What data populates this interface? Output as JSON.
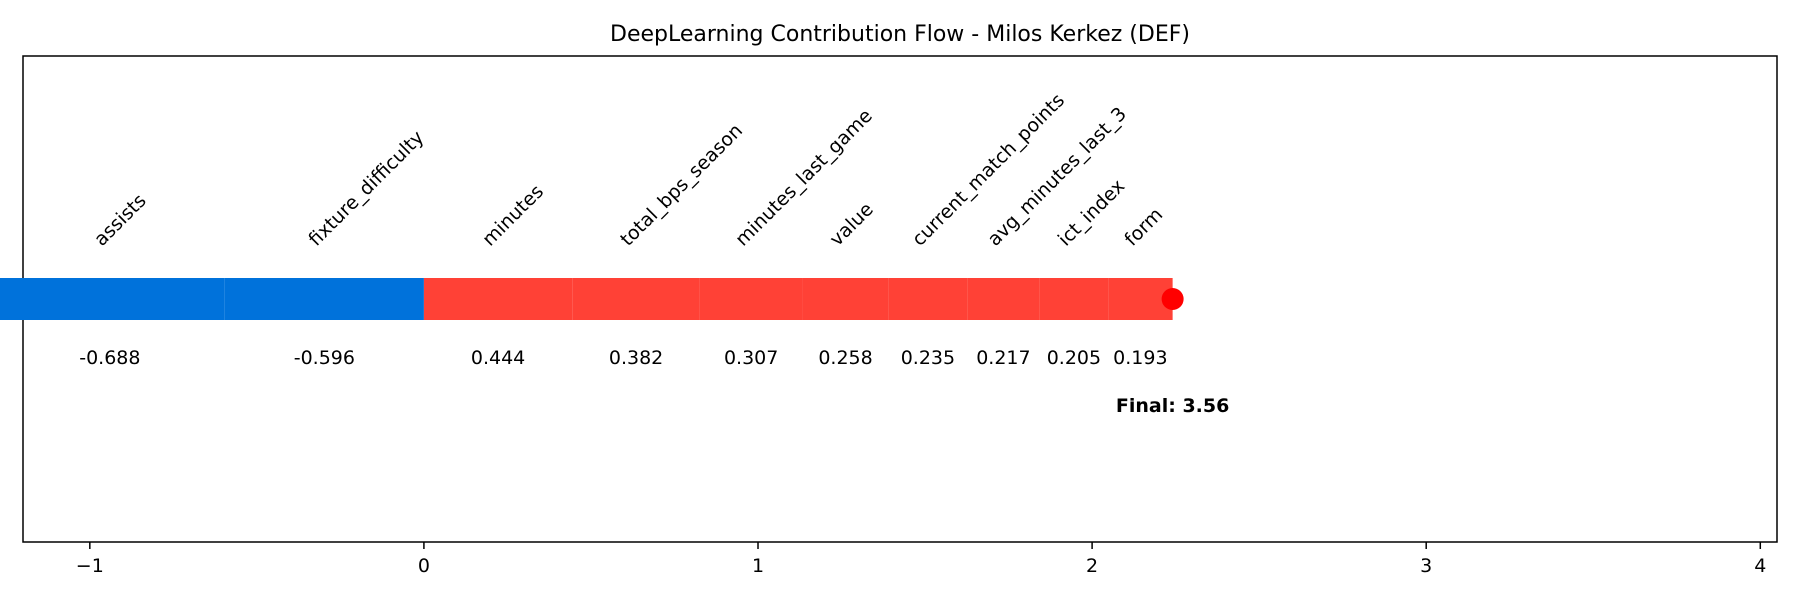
{
  "chart_data": {
    "type": "waterfall-flow",
    "title": "DeepLearning Contribution Flow - Milos Kerkez (DEF)",
    "xlim": [
      -1.2,
      4.05
    ],
    "xticks": [
      -1,
      0,
      1,
      2,
      3,
      4
    ],
    "xtick_labels": [
      "−1",
      "0",
      "1",
      "2",
      "3",
      "4"
    ],
    "contributions": [
      {
        "feature": "fixture_difficulty",
        "value": -0.596,
        "label": "-0.596",
        "color": "#0072db"
      },
      {
        "feature": "assists",
        "value": -0.688,
        "label": "-0.688",
        "color": "#0072db"
      },
      {
        "feature": "minutes",
        "value": 0.444,
        "label": "0.444",
        "color": "#ff4136"
      },
      {
        "feature": "total_bps_season",
        "value": 0.382,
        "label": "0.382",
        "color": "#ff4136"
      },
      {
        "feature": "minutes_last_game",
        "value": 0.307,
        "label": "0.307",
        "color": "#ff4136"
      },
      {
        "feature": "value",
        "value": 0.258,
        "label": "0.258",
        "color": "#ff4136"
      },
      {
        "feature": "current_match_points",
        "value": 0.235,
        "label": "0.235",
        "color": "#ff4136"
      },
      {
        "feature": "avg_minutes_last_3",
        "value": 0.217,
        "label": "0.217",
        "color": "#ff4136"
      },
      {
        "feature": "ict_index",
        "value": 0.205,
        "label": "0.205",
        "color": "#ff4136"
      },
      {
        "feature": "form",
        "value": 0.193,
        "label": "0.193",
        "color": "#ff4136"
      }
    ],
    "negative_color": "#0072db",
    "positive_color": "#ff4136",
    "final_marker_color": "#ff0000",
    "final_label": "Final: 3.56",
    "grid": false,
    "legend": "none"
  }
}
